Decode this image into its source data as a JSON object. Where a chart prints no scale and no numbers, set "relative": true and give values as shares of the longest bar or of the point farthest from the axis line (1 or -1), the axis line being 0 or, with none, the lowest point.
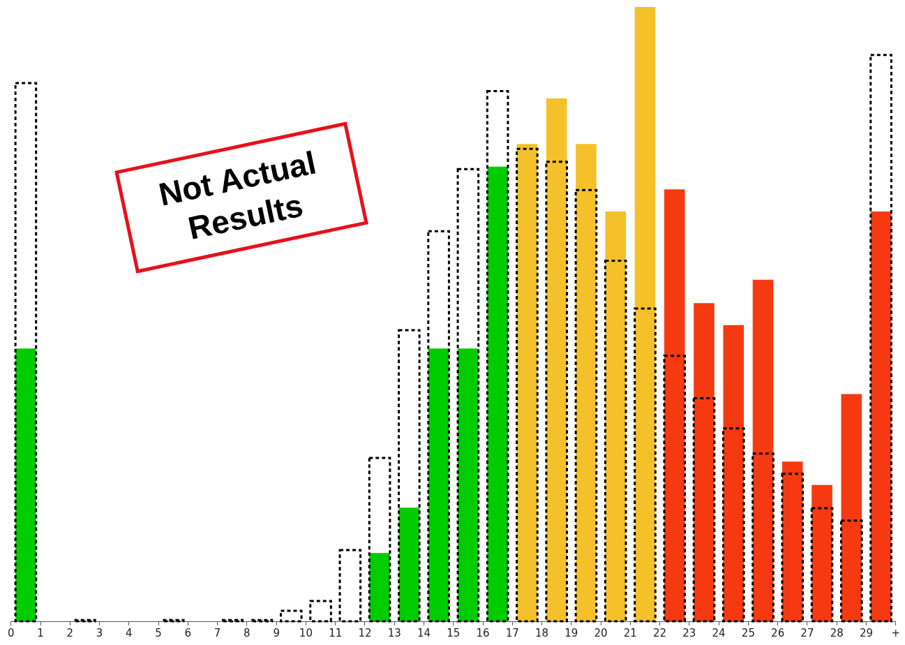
{
  "chart_data": {
    "type": "bar",
    "relative": true,
    "x": [
      0.5,
      1.5,
      2.5,
      3.5,
      4.5,
      5.5,
      6.5,
      7.5,
      8.5,
      9.5,
      10.5,
      11.5,
      12.5,
      13.5,
      14.5,
      15.5,
      16.5,
      17.5,
      18.5,
      19.5,
      20.5,
      21.5,
      22.5,
      23.5,
      24.5,
      25.5,
      26.5,
      27.5,
      28.5,
      29.5
    ],
    "xlim": [
      0,
      30
    ],
    "xticks": [
      0,
      1,
      2,
      3,
      4,
      5,
      6,
      7,
      8,
      9,
      10,
      11,
      12,
      13,
      14,
      15,
      16,
      17,
      18,
      19,
      20,
      21,
      22,
      23,
      24,
      25,
      26,
      27,
      28,
      29,
      {
        "value": 30,
        "label": "+"
      }
    ],
    "series": [
      {
        "values": [
          0.444,
          0,
          0,
          0,
          0,
          0,
          0,
          0,
          0,
          0,
          0,
          0,
          0.111,
          0.185,
          0.444,
          0.444,
          0.74,
          0.777,
          0.851,
          0.777,
          0.667,
          1.0,
          0.703,
          0.518,
          0.482,
          0.556,
          0.26,
          0.222,
          0.37,
          0.667
        ],
        "colors": [
          "#00cc00",
          "#00cc00",
          "#00cc00",
          "#00cc00",
          "#00cc00",
          "#00cc00",
          "#00cc00",
          "#00cc00",
          "#00cc00",
          "#00cc00",
          "#00cc00",
          "#00cc00",
          "#00cc00",
          "#00cc00",
          "#00cc00",
          "#00cc00",
          "#00cc00",
          "#f5c12a",
          "#f5c12a",
          "#f5c12a",
          "#f5c12a",
          "#f5c12a",
          "#f53a12",
          "#f53a12",
          "#f53a12",
          "#f53a12",
          "#f53a12",
          "#f53a12",
          "#f53a12",
          "#f53a12"
        ]
      },
      {
        "values": [
          0.876,
          0,
          0.002,
          0,
          0,
          0.002,
          0,
          0.002,
          0.002,
          0.017,
          0.033,
          0.116,
          0.266,
          0.474,
          0.635,
          0.736,
          0.863,
          0.769,
          0.748,
          0.702,
          0.587,
          0.509,
          0.432,
          0.363,
          0.314,
          0.273,
          0.24,
          0.184,
          0.164,
          0.922
        ],
        "color": "#000000",
        "line_style": "dashed"
      }
    ],
    "grid": false,
    "legend": false,
    "annotations": [
      "Not Actual Results"
    ]
  }
}
